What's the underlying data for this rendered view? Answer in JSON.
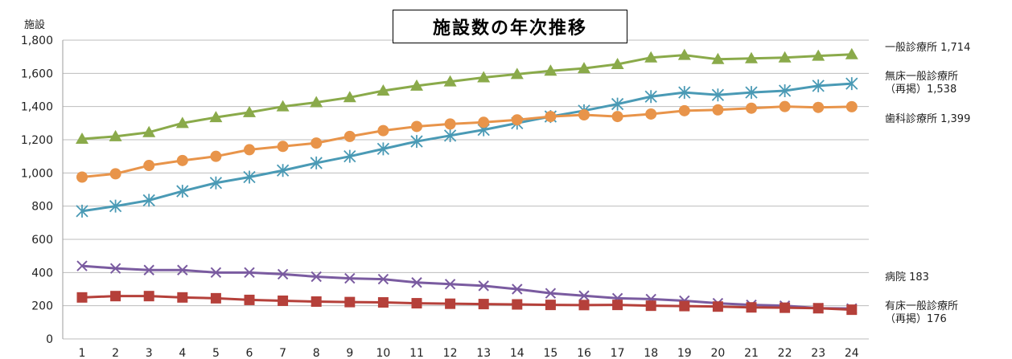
{
  "chart_data": {
    "type": "line",
    "title": "施設数の年次推移",
    "ylabel": "施設",
    "ylim": [
      0,
      1800
    ],
    "yticks": [
      0,
      200,
      400,
      600,
      800,
      1000,
      1200,
      1400,
      1600,
      1800
    ],
    "ytick_labels": [
      "0",
      "200",
      "400",
      "600",
      "800",
      "1,000",
      "1,200",
      "1,400",
      "1,600",
      "1,800"
    ],
    "x": [
      1,
      2,
      3,
      4,
      5,
      6,
      7,
      8,
      9,
      10,
      11,
      12,
      13,
      14,
      15,
      16,
      17,
      18,
      19,
      20,
      21,
      22,
      23,
      24
    ],
    "grid": true,
    "series": [
      {
        "name": "一般診療所",
        "color": "#8aaa4a",
        "marker": "triangle",
        "values": [
          1205,
          1220,
          1245,
          1300,
          1335,
          1365,
          1400,
          1425,
          1455,
          1495,
          1525,
          1550,
          1575,
          1595,
          1615,
          1630,
          1655,
          1695,
          1710,
          1685,
          1690,
          1695,
          1705,
          1714
        ]
      },
      {
        "name": "無床一般診療所（再掲）",
        "color": "#4a9ab5",
        "marker": "asterisk",
        "values": [
          770,
          800,
          835,
          890,
          940,
          975,
          1015,
          1060,
          1100,
          1145,
          1190,
          1225,
          1260,
          1300,
          1340,
          1375,
          1415,
          1460,
          1485,
          1470,
          1485,
          1495,
          1525,
          1538
        ]
      },
      {
        "name": "歯科診療所",
        "color": "#e8944a",
        "marker": "circle",
        "values": [
          975,
          995,
          1045,
          1075,
          1100,
          1140,
          1160,
          1180,
          1220,
          1255,
          1280,
          1295,
          1305,
          1320,
          1340,
          1350,
          1340,
          1355,
          1375,
          1380,
          1390,
          1400,
          1395,
          1399
        ]
      },
      {
        "name": "病院",
        "color": "#7a5ba0",
        "marker": "x",
        "values": [
          440,
          425,
          415,
          415,
          400,
          400,
          390,
          375,
          365,
          360,
          340,
          330,
          320,
          300,
          275,
          260,
          245,
          240,
          230,
          215,
          205,
          200,
          185,
          183
        ]
      },
      {
        "name": "有床一般診療所（再掲）",
        "color": "#b5403a",
        "marker": "square",
        "values": [
          250,
          258,
          258,
          250,
          245,
          235,
          230,
          225,
          222,
          220,
          215,
          212,
          210,
          208,
          205,
          204,
          205,
          200,
          198,
          195,
          190,
          188,
          185,
          176
        ]
      }
    ],
    "annotations": [
      {
        "text": "一般診療所 1,714"
      },
      {
        "text": "無床一般診療所\n（再掲）1,538"
      },
      {
        "text": "歯科診療所 1,399"
      },
      {
        "text": "病院 183"
      },
      {
        "text": "有床一般診療所\n（再掲）176"
      }
    ]
  }
}
